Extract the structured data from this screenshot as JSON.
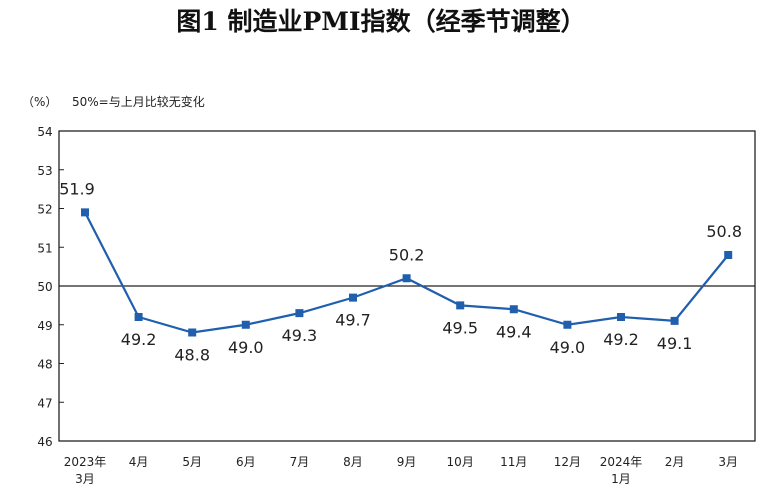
{
  "chart_data": {
    "type": "line",
    "title": "图1  制造业PMI指数（经季节调整）",
    "ylabel": "（%）",
    "annotation": "50%=与上月比较无变化",
    "ylim": [
      46,
      54
    ],
    "yticks": [
      46,
      47,
      48,
      49,
      50,
      51,
      52,
      53,
      54
    ],
    "reference_line": 50,
    "categories": [
      [
        "2023年",
        "3月"
      ],
      [
        "4月"
      ],
      [
        "5月"
      ],
      [
        "6月"
      ],
      [
        "7月"
      ],
      [
        "8月"
      ],
      [
        "9月"
      ],
      [
        "10月"
      ],
      [
        "11月"
      ],
      [
        "12月"
      ],
      [
        "2024年",
        "1月"
      ],
      [
        "2月"
      ],
      [
        "3月"
      ]
    ],
    "series": [
      {
        "name": "制造业PMI",
        "color": "#1f5fae",
        "values": [
          51.9,
          49.2,
          48.8,
          49.0,
          49.3,
          49.7,
          50.2,
          49.5,
          49.4,
          49.0,
          49.2,
          49.1,
          50.8
        ],
        "labels": [
          "51.9",
          "49.2",
          "48.8",
          "49.0",
          "",
          "49.7",
          "50.2",
          "49.5",
          "49.4",
          "49.0",
          "49.2",
          "49.1",
          "50.8"
        ]
      }
    ]
  }
}
